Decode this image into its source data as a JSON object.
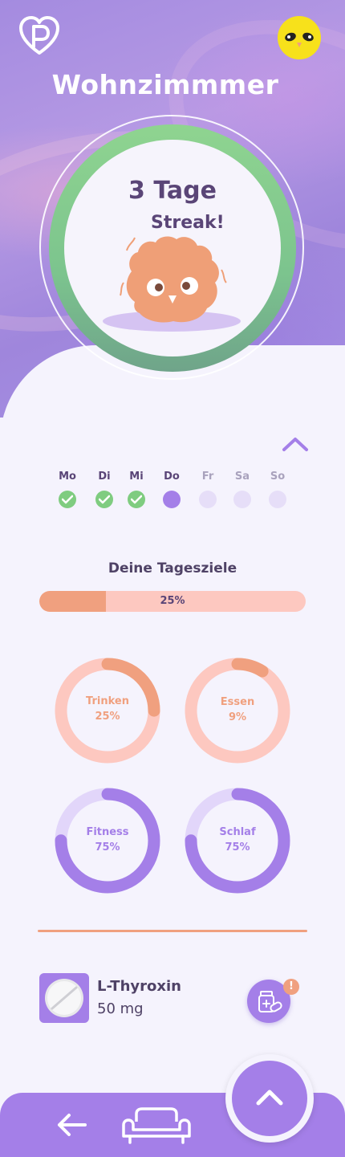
{
  "header": {
    "room_title": "Wohnzimmmer"
  },
  "streak": {
    "count_text": "3 Tage",
    "label": "Streak!"
  },
  "week": {
    "days": [
      {
        "label": "Mo",
        "state": "done"
      },
      {
        "label": "Di",
        "state": "done"
      },
      {
        "label": "Mi",
        "state": "done"
      },
      {
        "label": "Do",
        "state": "today"
      },
      {
        "label": "Fr",
        "state": "future"
      },
      {
        "label": "Sa",
        "state": "future"
      },
      {
        "label": "So",
        "state": "future"
      }
    ]
  },
  "goals": {
    "title": "Deine Tagesziele",
    "overall_label": "25%",
    "overall_value": 0.25,
    "items": [
      {
        "name": "Trinken",
        "percent_label": "25%",
        "value": 0.25,
        "color": "orange"
      },
      {
        "name": "Essen",
        "percent_label": "9%",
        "value": 0.09,
        "color": "orange"
      },
      {
        "name": "Fitness",
        "percent_label": "75%",
        "value": 0.75,
        "color": "purple"
      },
      {
        "name": "Schlaf",
        "percent_label": "75%",
        "value": 0.75,
        "color": "purple"
      }
    ]
  },
  "medication": {
    "name": "L-Thyroxin",
    "dose": "50 mg",
    "badge": "!"
  },
  "colors": {
    "accent_purple": "#a47fe8",
    "accent_orange": "#f0a07f",
    "light_orange": "#fdc8c0",
    "light_purple": "#e2d6fa",
    "streak_green": "#7fcc80",
    "text_dark": "#4f4266"
  },
  "icons": {
    "logo": "heart-p-logo-icon",
    "avatar": "owl-avatar-icon",
    "collapse": "chevron-up-icon",
    "check": "check-icon",
    "med": "pill-icon",
    "med_action": "medicine-bottle-icon",
    "back": "arrow-left-icon",
    "room": "sofa-icon",
    "fab": "chevron-up-icon"
  }
}
